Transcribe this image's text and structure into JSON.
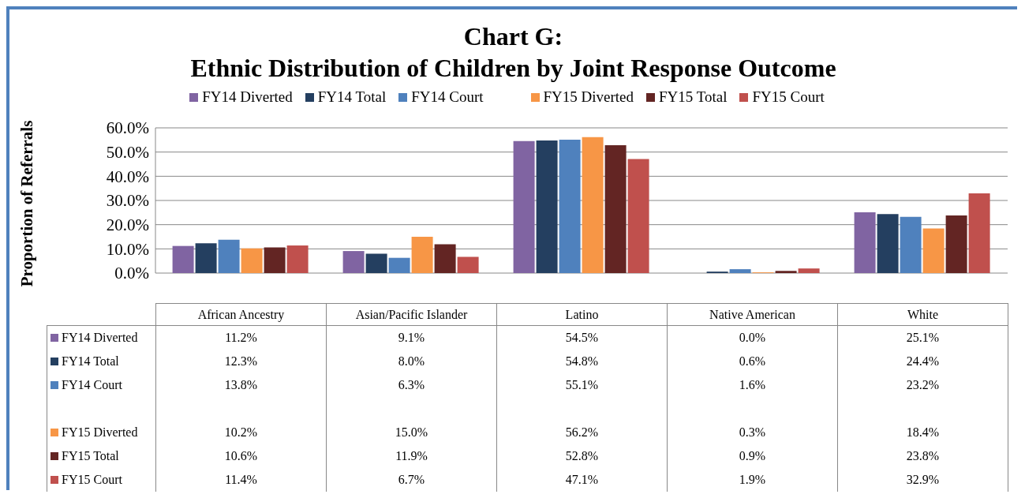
{
  "chart_data": {
    "type": "bar",
    "title": "Chart G:\nEthnic Distribution of Children by Joint Response Outcome",
    "ylabel": "Proportion of Referrals",
    "categories": [
      "African Ancestry",
      "Asian/Pacific Islander",
      "Latino",
      "Native American",
      "White"
    ],
    "series": [
      {
        "name": "FY14 Diverted",
        "color": "#8064a2",
        "values": [
          11.2,
          9.1,
          54.5,
          0.0,
          25.1
        ],
        "value_labels": [
          "11.2%",
          "9.1%",
          "54.5%",
          "0.0%",
          "25.1%"
        ]
      },
      {
        "name": "FY14 Total",
        "color": "#243f60",
        "values": [
          12.3,
          8.0,
          54.8,
          0.6,
          24.4
        ],
        "value_labels": [
          "12.3%",
          "8.0%",
          "54.8%",
          "0.6%",
          "24.4%"
        ]
      },
      {
        "name": "FY14 Court",
        "color": "#4f81bd",
        "values": [
          13.8,
          6.3,
          55.1,
          1.6,
          23.2
        ],
        "value_labels": [
          "13.8%",
          "6.3%",
          "55.1%",
          "1.6%",
          "23.2%"
        ]
      },
      {
        "name": "FY15 Diverted",
        "color": "#f79646",
        "values": [
          10.2,
          15.0,
          56.2,
          0.3,
          18.4
        ],
        "value_labels": [
          "10.2%",
          "15.0%",
          "56.2%",
          "0.3%",
          "18.4%"
        ]
      },
      {
        "name": "FY15 Total",
        "color": "#632523",
        "values": [
          10.6,
          11.9,
          52.8,
          0.9,
          23.8
        ],
        "value_labels": [
          "10.6%",
          "11.9%",
          "52.8%",
          "0.9%",
          "23.8%"
        ]
      },
      {
        "name": "FY15 Court",
        "color": "#c0504d",
        "values": [
          11.4,
          6.7,
          47.1,
          1.9,
          32.9
        ],
        "value_labels": [
          "11.4%",
          "6.7%",
          "47.1%",
          "1.9%",
          "32.9%"
        ]
      }
    ],
    "ylim": [
      0,
      60
    ],
    "yticks": [
      {
        "value": 0,
        "label": "0.0%"
      },
      {
        "value": 10,
        "label": "10.0%"
      },
      {
        "value": 20,
        "label": "20.0%"
      },
      {
        "value": 30,
        "label": "30.0%"
      },
      {
        "value": 40,
        "label": "40.0%"
      },
      {
        "value": 50,
        "label": "50.0%"
      },
      {
        "value": 60,
        "label": "60.0%"
      }
    ],
    "grid": "y",
    "legend": "top"
  }
}
